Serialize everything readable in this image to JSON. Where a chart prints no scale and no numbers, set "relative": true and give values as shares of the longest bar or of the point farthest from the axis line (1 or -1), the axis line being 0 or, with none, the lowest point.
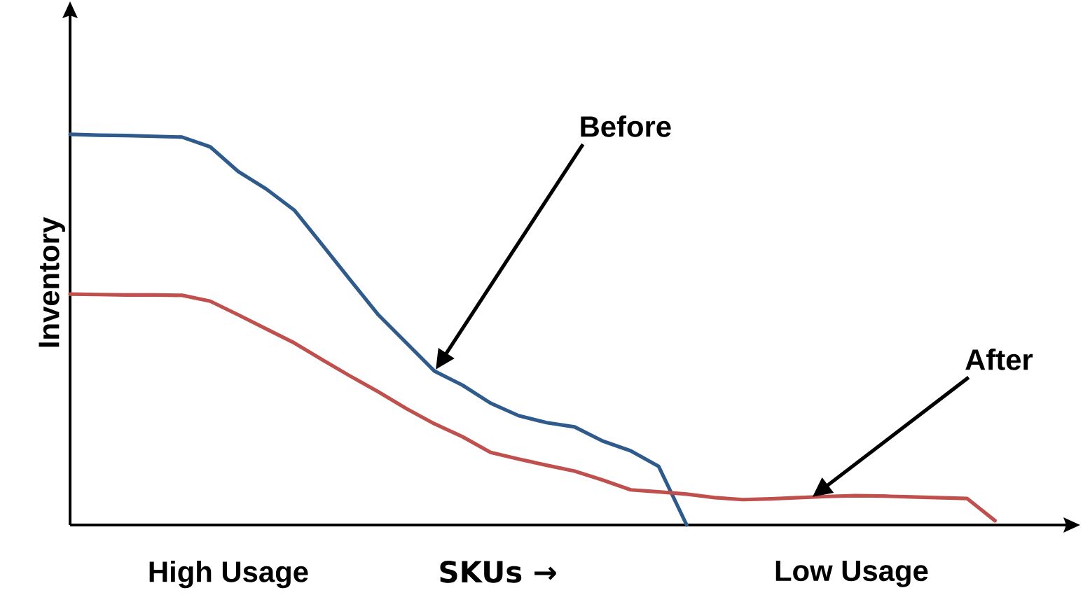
{
  "chart_data": {
    "type": "line",
    "relative": true,
    "ylabel": "Inventory",
    "xlabel": "SKUs →",
    "marker": "none",
    "line_style": "solid",
    "categories": [
      null,
      null,
      null,
      null,
      null,
      null,
      null,
      null,
      null,
      null,
      null,
      null,
      null,
      null,
      null,
      null,
      null,
      null,
      null,
      null,
      null,
      null,
      null,
      null,
      null,
      null,
      null,
      null,
      null,
      null,
      null,
      null,
      null,
      null
    ],
    "annotations": [
      "Before",
      "After",
      "High Usage",
      "Low Usage"
    ],
    "series": [
      {
        "color": "#2e5a8c",
        "values": [
          1.0,
          0.998,
          0.997,
          0.995,
          0.993,
          0.968,
          0.905,
          0.86,
          0.806,
          0.717,
          0.627,
          0.538,
          0.466,
          0.394,
          0.358,
          0.312,
          0.28,
          0.262,
          0.251,
          0.215,
          0.19,
          0.15,
          0,
          null,
          null,
          null,
          null,
          null,
          null,
          null,
          null,
          null,
          null,
          null
        ]
      },
      {
        "color": "#c0504d",
        "values": [
          0.591,
          0.59,
          0.589,
          0.589,
          0.588,
          0.573,
          0.538,
          0.502,
          0.466,
          0.423,
          0.381,
          0.341,
          0.298,
          0.259,
          0.226,
          0.186,
          0.169,
          0.153,
          0.138,
          0.115,
          0.09,
          0.085,
          0.079,
          0.07,
          0.065,
          0.067,
          0.07,
          0.073,
          0.075,
          0.074,
          0.072,
          0.07,
          0.068,
          0.011
        ]
      }
    ]
  }
}
